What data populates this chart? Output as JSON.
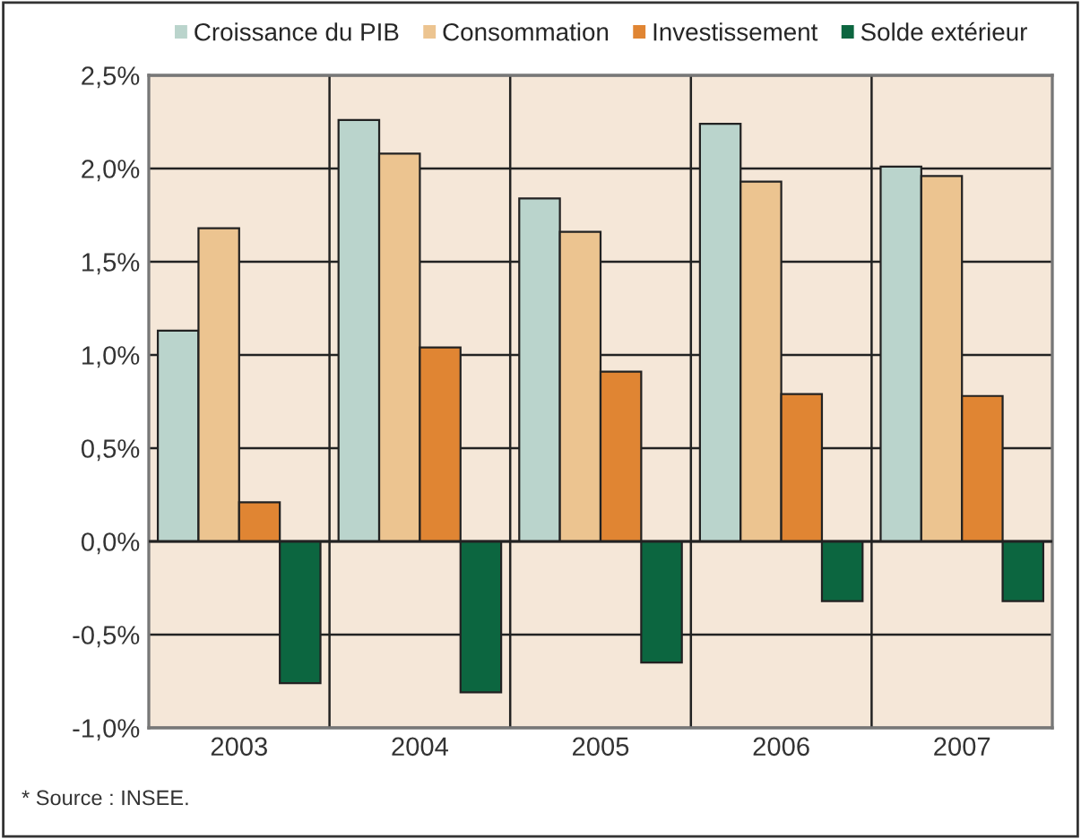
{
  "chart_data": {
    "type": "bar",
    "categories": [
      "2003",
      "2004",
      "2005",
      "2006",
      "2007"
    ],
    "series": [
      {
        "name": "Croissance du PIB",
        "color": "#bad4cc",
        "values": [
          1.13,
          2.26,
          1.84,
          2.24,
          2.01
        ]
      },
      {
        "name": "Consommation",
        "color": "#ecc490",
        "values": [
          1.68,
          2.08,
          1.66,
          1.93,
          1.96
        ]
      },
      {
        "name": "Investissement",
        "color": "#e08533",
        "values": [
          0.21,
          1.04,
          0.91,
          0.79,
          0.78
        ]
      },
      {
        "name": "Solde extérieur",
        "color": "#0c6640",
        "values": [
          -0.76,
          -0.81,
          -0.65,
          -0.32,
          -0.32
        ]
      }
    ],
    "ylim": [
      -1.0,
      2.5
    ],
    "yticks": [
      {
        "value": -1.0,
        "label": "-1,0%"
      },
      {
        "value": -0.5,
        "label": "-0,5%"
      },
      {
        "value": 0.0,
        "label": "0,0%"
      },
      {
        "value": 0.5,
        "label": "0,5%"
      },
      {
        "value": 1.0,
        "label": "1,0%"
      },
      {
        "value": 1.5,
        "label": "1,5%"
      },
      {
        "value": 2.0,
        "label": "2,0%"
      },
      {
        "value": 2.5,
        "label": "2,5%"
      }
    ],
    "grid": true,
    "legend": "top",
    "annotations": [
      "* Source : INSEE."
    ]
  }
}
